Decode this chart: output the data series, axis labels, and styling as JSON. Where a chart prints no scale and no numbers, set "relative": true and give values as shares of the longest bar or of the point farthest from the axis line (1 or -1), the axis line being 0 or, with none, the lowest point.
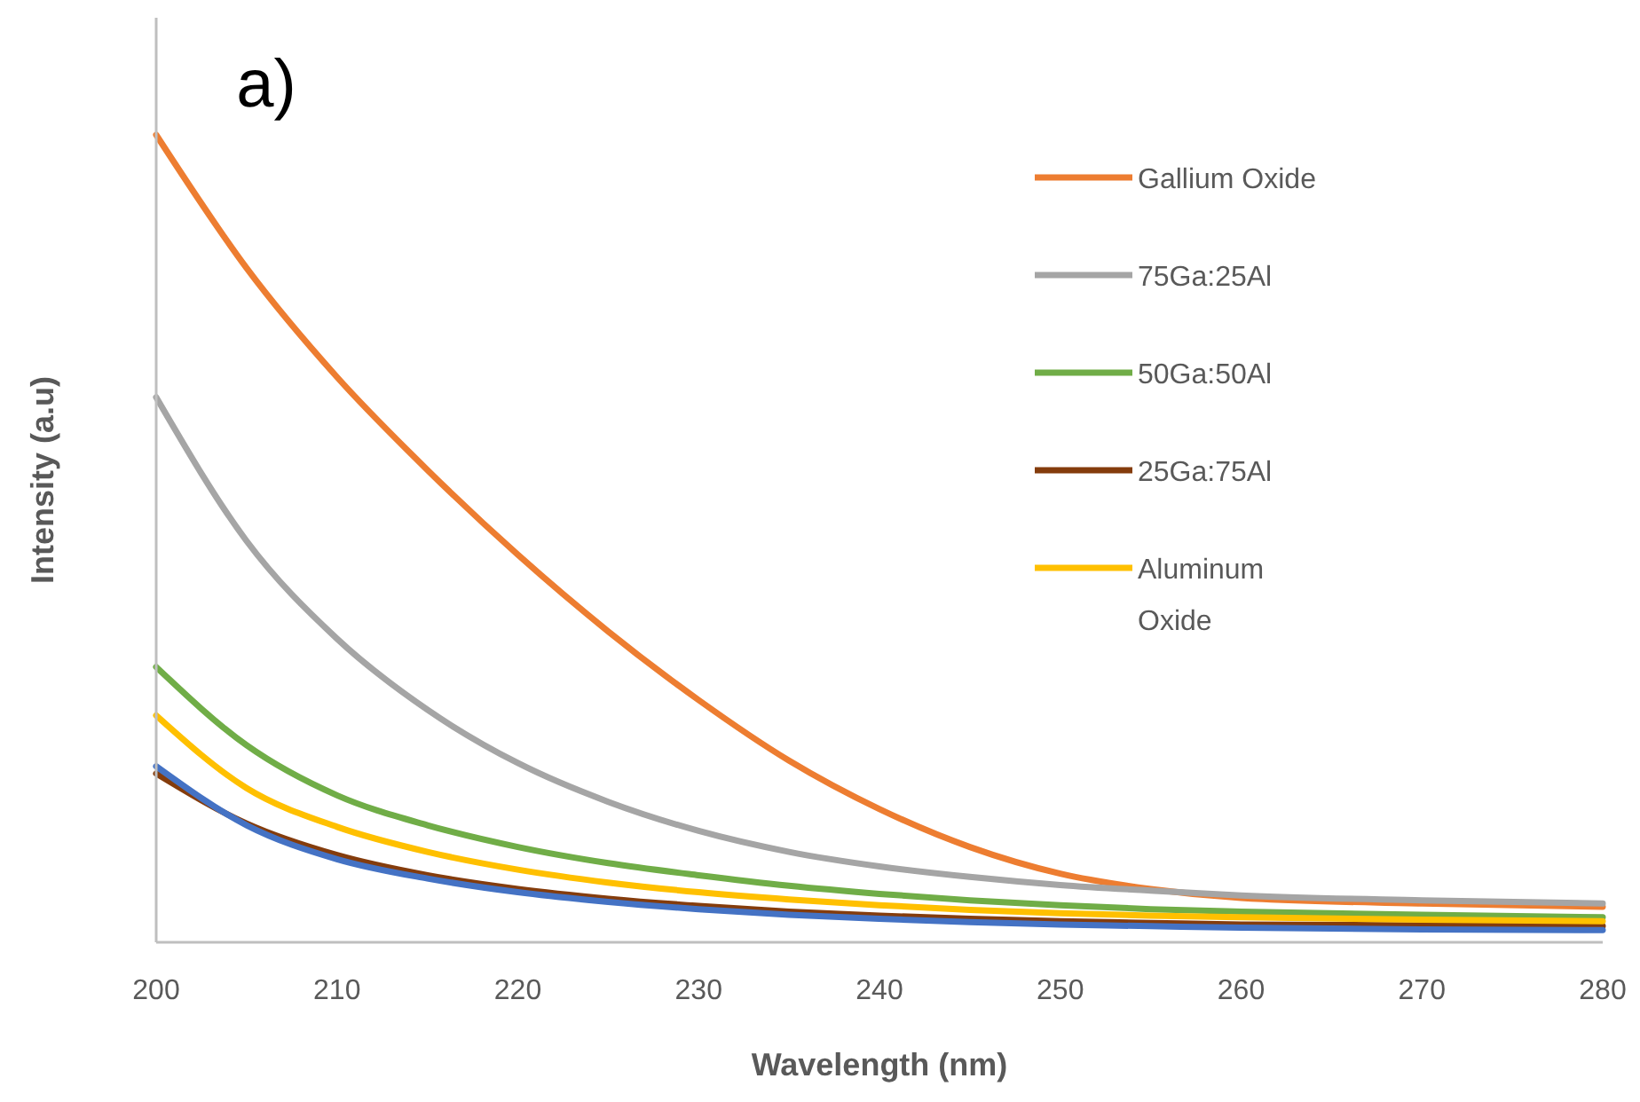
{
  "chart_data": {
    "type": "line",
    "title": "a)",
    "xlabel": "Wavelength (nm)",
    "ylabel": "Intensity (a.u)",
    "relative": true,
    "x": [
      200,
      205,
      210,
      215,
      220,
      225,
      230,
      235,
      240,
      245,
      250,
      255,
      260,
      270,
      280
    ],
    "xlim": [
      200,
      280
    ],
    "xticks": [
      200,
      210,
      220,
      230,
      240,
      250,
      260,
      270,
      280
    ],
    "grid": false,
    "legend": "top right",
    "marker": "none",
    "line_style": "solid",
    "series": [
      {
        "name": "Gallium Oxide",
        "color": "#ed7d31",
        "values": [
          1.0,
          0.835,
          0.7,
          0.585,
          0.48,
          0.385,
          0.3,
          0.225,
          0.165,
          0.118,
          0.085,
          0.066,
          0.055,
          0.048,
          0.044
        ]
      },
      {
        "name": "75Ga:25Al",
        "color": "#a5a5a5",
        "values": [
          0.675,
          0.497,
          0.376,
          0.288,
          0.222,
          0.174,
          0.138,
          0.112,
          0.094,
          0.081,
          0.071,
          0.064,
          0.058,
          0.052,
          0.048
        ]
      },
      {
        "name": "50Ga:50Al",
        "color": "#70ad47",
        "values": [
          0.341,
          0.244,
          0.182,
          0.145,
          0.118,
          0.098,
          0.083,
          0.07,
          0.06,
          0.052,
          0.046,
          0.041,
          0.038,
          0.034,
          0.031
        ]
      },
      {
        "name": "25Ga:75Al",
        "color": "#843c0c",
        "values": [
          0.209,
          0.147,
          0.108,
          0.083,
          0.066,
          0.054,
          0.045,
          0.038,
          0.033,
          0.029,
          0.026,
          0.024,
          0.022,
          0.021,
          0.02
        ]
      },
      {
        "name": "Aluminum Oxide",
        "color": "#ffc000",
        "values": [
          0.281,
          0.191,
          0.143,
          0.112,
          0.09,
          0.074,
          0.062,
          0.053,
          0.046,
          0.04,
          0.036,
          0.033,
          0.031,
          0.028,
          0.026
        ]
      },
      {
        "color": "#4472c4",
        "values": [
          0.218,
          0.145,
          0.103,
          0.079,
          0.062,
          0.05,
          0.041,
          0.034,
          0.029,
          0.025,
          0.022,
          0.02,
          0.018,
          0.016,
          0.015
        ]
      }
    ]
  }
}
